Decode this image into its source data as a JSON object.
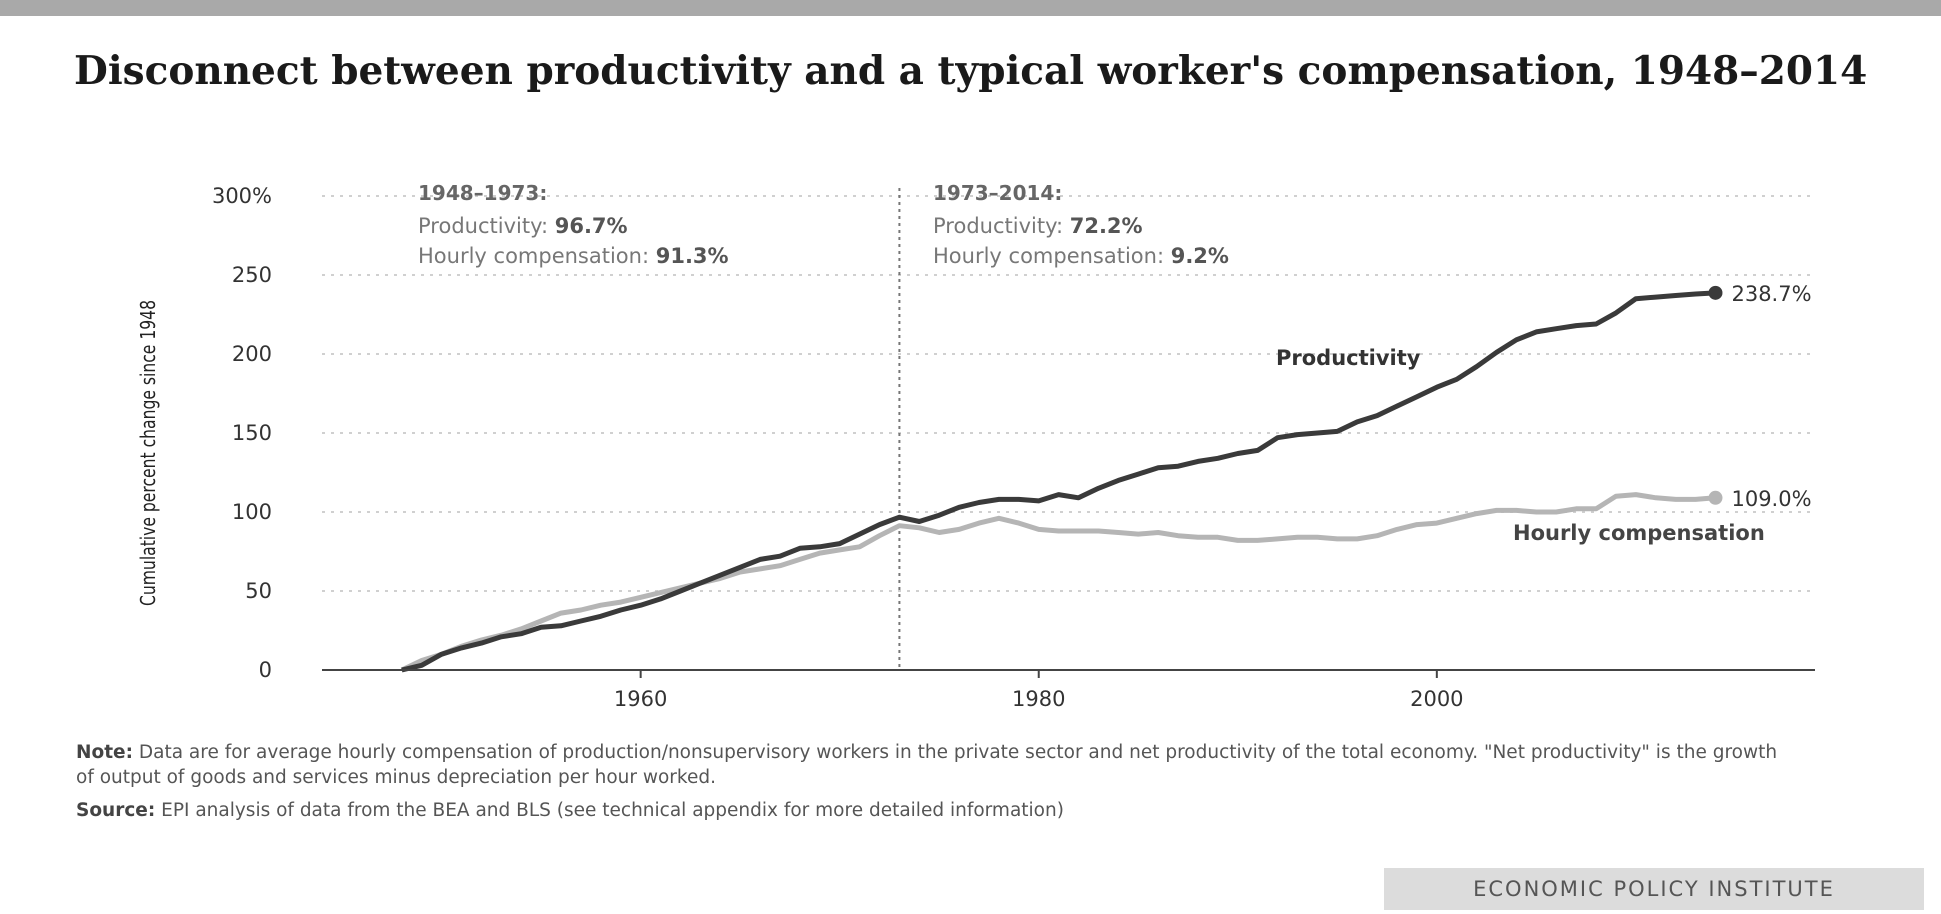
{
  "title": "Disconnect between productivity and a typical worker's compensation, 1948–2014",
  "notes": {
    "note_label": "Note:",
    "note_text": "Data are for average hourly compensation of production/nonsupervisory workers in the private sector and net productivity of the total economy. \"Net productivity\" is the growth of output of goods and services minus depreciation per hour worked.",
    "source_label": "Source:",
    "source_text": "EPI analysis of data from the BEA and BLS (see technical appendix for more detailed information)"
  },
  "footer": "ECONOMIC POLICY INSTITUTE",
  "colors": {
    "productivity": "#3a3a3a",
    "compensation": "#b5b5b5",
    "grid": "#d0d0d0",
    "text": "#333333"
  },
  "chart_data": {
    "type": "line",
    "title": "Disconnect between productivity and a typical worker's compensation, 1948–2014",
    "xlabel": "",
    "ylabel": "Cumulative percent change since 1948",
    "xlim": [
      1946,
      2019
    ],
    "ylim": [
      0,
      300
    ],
    "x_ticks": [
      "1960",
      "1980",
      "2000"
    ],
    "y_ticks": [
      "0",
      "50",
      "100",
      "150",
      "200",
      "250",
      "300%"
    ],
    "grid": "horizontal dotted",
    "divider_year": 1973,
    "annotations": [
      {
        "period": "1948–1973:",
        "prod_label": "Productivity:",
        "prod_value": "96.7%",
        "comp_label": "Hourly compensation:",
        "comp_value": "91.3%"
      },
      {
        "period": "1973–2014:",
        "prod_label": "Productivity:",
        "prod_value": "72.2%",
        "comp_label": "Hourly compensation:",
        "comp_value": "9.2%"
      }
    ],
    "series": [
      {
        "name": "Productivity",
        "end_label": "238.7%",
        "x": [
          1948,
          1949,
          1950,
          1951,
          1952,
          1953,
          1954,
          1955,
          1956,
          1957,
          1958,
          1959,
          1960,
          1961,
          1962,
          1963,
          1964,
          1965,
          1966,
          1967,
          1968,
          1969,
          1970,
          1971,
          1972,
          1973,
          1974,
          1975,
          1976,
          1977,
          1978,
          1979,
          1980,
          1981,
          1982,
          1983,
          1984,
          1985,
          1986,
          1987,
          1988,
          1989,
          1990,
          1991,
          1992,
          1993,
          1994,
          1995,
          1996,
          1997,
          1998,
          1999,
          2000,
          2001,
          2002,
          2003,
          2004,
          2005,
          2006,
          2007,
          2008,
          2009,
          2010,
          2011,
          2012,
          2013,
          2014
        ],
        "y": [
          0,
          3,
          10,
          14,
          17,
          21,
          23,
          27,
          28,
          31,
          34,
          38,
          41,
          45,
          50,
          55,
          60,
          65,
          70,
          72,
          77,
          78,
          80,
          86,
          92,
          96.7,
          94,
          98,
          103,
          106,
          108,
          108,
          107,
          111,
          109,
          115,
          120,
          124,
          128,
          129,
          132,
          134,
          137,
          139,
          147,
          149,
          150,
          151,
          157,
          161,
          167,
          173,
          179,
          184,
          192,
          201,
          209,
          214,
          216,
          218,
          219,
          226,
          235,
          236,
          237,
          238,
          238.7
        ]
      },
      {
        "name": "Hourly compensation",
        "end_label": "109.0%",
        "x": [
          1948,
          1949,
          1950,
          1951,
          1952,
          1953,
          1954,
          1955,
          1956,
          1957,
          1958,
          1959,
          1960,
          1961,
          1962,
          1963,
          1964,
          1965,
          1966,
          1967,
          1968,
          1969,
          1970,
          1971,
          1972,
          1973,
          1974,
          1975,
          1976,
          1977,
          1978,
          1979,
          1980,
          1981,
          1982,
          1983,
          1984,
          1985,
          1986,
          1987,
          1988,
          1989,
          1990,
          1991,
          1992,
          1993,
          1994,
          1995,
          1996,
          1997,
          1998,
          1999,
          2000,
          2001,
          2002,
          2003,
          2004,
          2005,
          2006,
          2007,
          2008,
          2009,
          2010,
          2011,
          2012,
          2013,
          2014
        ],
        "y": [
          0,
          6,
          10,
          15,
          19,
          22,
          26,
          31,
          36,
          38,
          41,
          43,
          46,
          49,
          52,
          55,
          58,
          62,
          64,
          66,
          70,
          74,
          76,
          78,
          85,
          91.3,
          90,
          87,
          89,
          93,
          96,
          93,
          89,
          88,
          88,
          88,
          87,
          86,
          87,
          85,
          84,
          84,
          82,
          82,
          83,
          84,
          84,
          83,
          83,
          85,
          89,
          92,
          93,
          96,
          99,
          101,
          101,
          100,
          100,
          102,
          102,
          110,
          111,
          109,
          108,
          108,
          109
        ]
      }
    ]
  }
}
